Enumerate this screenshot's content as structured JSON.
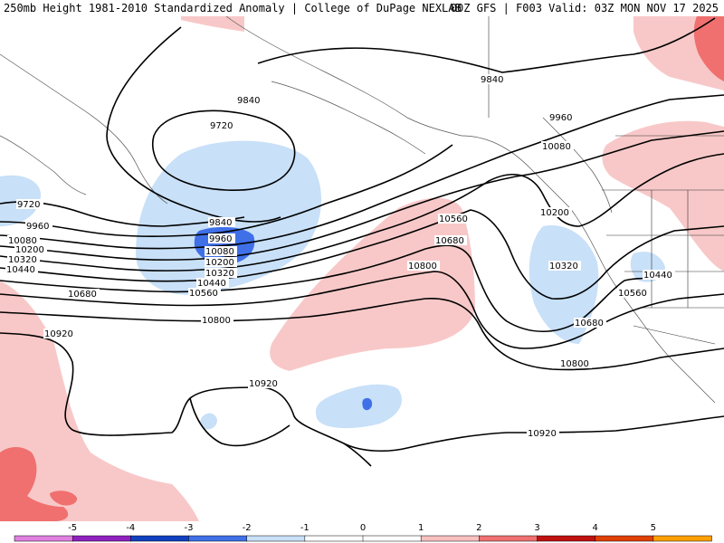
{
  "header": {
    "title": "250mb Height 1981-2010 Standardized Anomaly | College of DuPage NEXLAB",
    "model_info": "00Z GFS | F003 Valid: 03Z MON NOV 17 2025"
  },
  "contour_labels": [
    "9720",
    "9840",
    "9960",
    "10080",
    "10200",
    "10320",
    "10440",
    "10560",
    "10680",
    "10800",
    "10920",
    "9720",
    "9840",
    "9960",
    "10080",
    "10200",
    "10320",
    "10440",
    "10560",
    "10680",
    "10800",
    "10920",
    "9840",
    "9960",
    "10080",
    "10200",
    "10320",
    "10440",
    "10560",
    "10680",
    "10800",
    "10920"
  ],
  "colorbar": {
    "ticks": [
      "-5",
      "-4",
      "-3",
      "-2",
      "-1",
      "0",
      "1",
      "2",
      "3",
      "4",
      "5"
    ],
    "colors": [
      "#e080e0",
      "#9020c0",
      "#1040c0",
      "#4070e8",
      "#c8e0f8",
      "#ffffff",
      "#ffffff",
      "#f8c0c0",
      "#f07070",
      "#c01010",
      "#e04000",
      "#ffa000"
    ]
  },
  "anomaly_colors": {
    "light_blue": "#c8e0f8",
    "medium_blue": "#4070e8",
    "light_red": "#f8c8c8",
    "medium_red": "#f07070"
  }
}
